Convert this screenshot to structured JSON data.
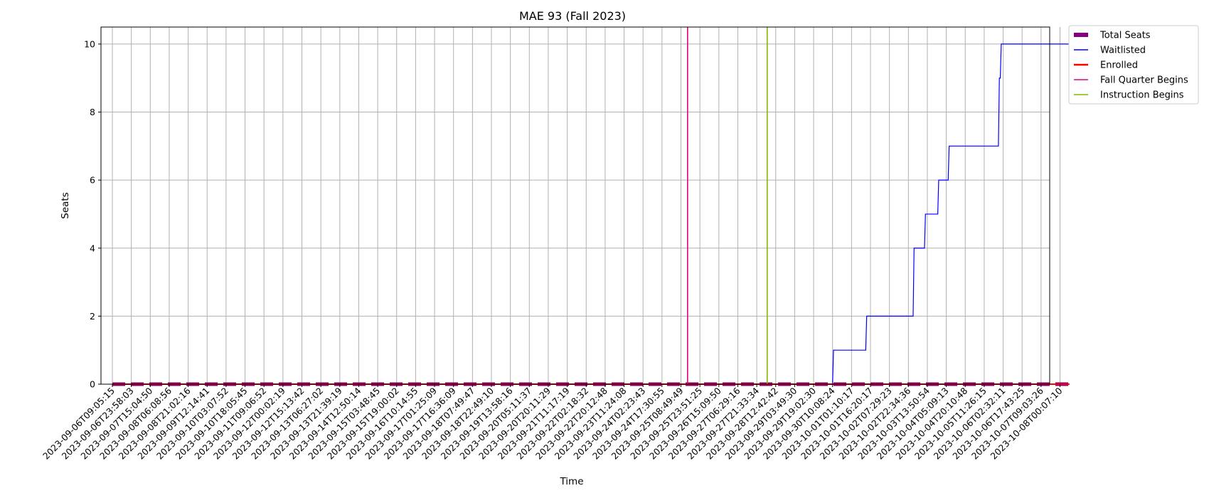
{
  "chart_data": {
    "type": "line",
    "title": "MAE 93 (Fall 2023)",
    "xlabel": "Time",
    "ylabel": "Seats",
    "ylim": [
      0,
      10.5
    ],
    "y_ticks": [
      "0",
      "2",
      "4",
      "6",
      "8",
      "10"
    ],
    "grid": true,
    "legend_position": "outside-top-right",
    "x_tick_labels": [
      "2023-09-06T09:05:15",
      "2023-09-06T23:58:03",
      "2023-09-07T15:04:50",
      "2023-09-08T06:08:56",
      "2023-09-08T21:02:16",
      "2023-09-09T12:14:41",
      "2023-09-10T03:07:52",
      "2023-09-10T18:05:45",
      "2023-09-11T09:06:52",
      "2023-09-12T00:02:19",
      "2023-09-12T15:13:42",
      "2023-09-13T06:27:02",
      "2023-09-13T21:39:19",
      "2023-09-14T12:50:14",
      "2023-09-15T03:48:45",
      "2023-09-15T19:00:02",
      "2023-09-16T10:14:55",
      "2023-09-17T01:25:09",
      "2023-09-17T16:36:09",
      "2023-09-18T07:49:47",
      "2023-09-18T22:49:10",
      "2023-09-19T13:58:16",
      "2023-09-20T05:11:37",
      "2023-09-20T20:11:29",
      "2023-09-21T11:17:19",
      "2023-09-22T02:18:32",
      "2023-09-22T20:12:48",
      "2023-09-23T11:24:08",
      "2023-09-24T02:23:43",
      "2023-09-24T17:30:55",
      "2023-09-25T08:49:49",
      "2023-09-25T23:51:25",
      "2023-09-26T15:09:50",
      "2023-09-27T06:29:16",
      "2023-09-27T21:33:34",
      "2023-09-28T12:42:42",
      "2023-09-29T03:49:30",
      "2023-09-29T19:02:30",
      "2023-09-30T10:08:24",
      "2023-10-01T01:10:17",
      "2023-10-01T16:20:17",
      "2023-10-02T07:29:23",
      "2023-10-02T22:34:36",
      "2023-10-03T13:50:54",
      "2023-10-04T05:09:13",
      "2023-10-04T20:10:48",
      "2023-10-05T11:26:15",
      "2023-10-06T02:32:11",
      "2023-10-06T17:43:25",
      "2023-10-07T09:03:26",
      "2023-10-08T00:07:10"
    ],
    "series": [
      {
        "name": "Total Seats",
        "color": "#800080",
        "style": "dashed-thick",
        "points": [
          [
            0,
            0
          ],
          [
            50.5,
            0
          ]
        ]
      },
      {
        "name": "Waitlisted",
        "color": "#0000ff",
        "style": "solid",
        "points": [
          [
            0,
            0
          ],
          [
            38.0,
            0
          ],
          [
            38.05,
            1
          ],
          [
            39.75,
            1
          ],
          [
            39.8,
            2
          ],
          [
            42.25,
            2
          ],
          [
            42.3,
            4
          ],
          [
            42.85,
            4
          ],
          [
            42.9,
            5
          ],
          [
            43.55,
            5
          ],
          [
            43.6,
            6
          ],
          [
            44.1,
            6
          ],
          [
            44.15,
            7
          ],
          [
            46.75,
            7
          ],
          [
            46.8,
            9
          ],
          [
            46.85,
            9
          ],
          [
            46.9,
            10
          ],
          [
            50.5,
            10
          ]
        ]
      },
      {
        "name": "Enrolled",
        "color": "#ff0000",
        "style": "solid-thick",
        "points": [
          [
            0,
            0
          ],
          [
            50.5,
            0
          ]
        ]
      },
      {
        "name": "Fall Quarter Begins",
        "color": "#e6007e",
        "style": "vline",
        "x": 30.35
      },
      {
        "name": "Instruction Begins",
        "color": "#7fb800",
        "style": "vline",
        "x": 34.55
      }
    ]
  }
}
